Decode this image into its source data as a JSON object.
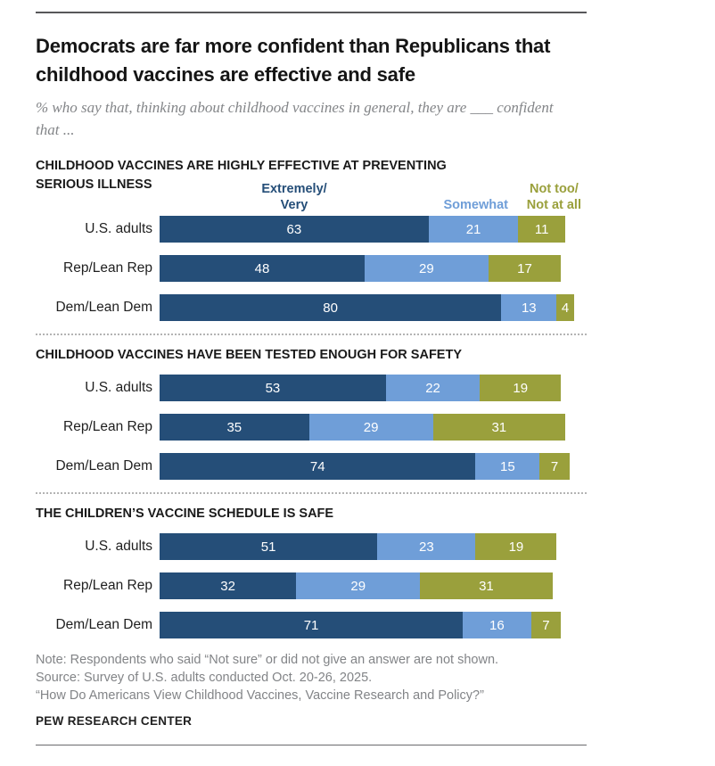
{
  "header": {
    "title": "Democrats are far more confident than Republicans that childhood vaccines are effective and safe",
    "subtitle": "% who say that, thinking about childhood vaccines in general, they are ___ confident that ..."
  },
  "legend": {
    "extremely_very": "Extremely/\nVery",
    "somewhat": "Somewhat",
    "not_too": "Not too/\nNot at all"
  },
  "chart_data": {
    "type": "bar",
    "orientation": "horizontal",
    "stacked": true,
    "unit": "%",
    "value_range": [
      0,
      100
    ],
    "series": [
      "Extremely/Very",
      "Somewhat",
      "Not too/Not at all"
    ],
    "colors": [
      "#254E78",
      "#6F9ED8",
      "#9AA03C"
    ],
    "panels": [
      {
        "title": "CHILDHOOD VACCINES ARE HIGHLY EFFECTIVE AT PREVENTING SERIOUS ILLNESS",
        "rows": [
          {
            "label": "U.S. adults",
            "values": [
              63,
              21,
              11
            ]
          },
          {
            "label": "Rep/Lean Rep",
            "values": [
              48,
              29,
              17
            ]
          },
          {
            "label": "Dem/Lean Dem",
            "values": [
              80,
              13,
              4
            ]
          }
        ]
      },
      {
        "title": "CHILDHOOD VACCINES HAVE BEEN TESTED ENOUGH FOR SAFETY",
        "rows": [
          {
            "label": "U.S. adults",
            "values": [
              53,
              22,
              19
            ]
          },
          {
            "label": "Rep/Lean Rep",
            "values": [
              35,
              29,
              31
            ]
          },
          {
            "label": "Dem/Lean Dem",
            "values": [
              74,
              15,
              7
            ]
          }
        ]
      },
      {
        "title": "THE CHILDREN’S VACCINE SCHEDULE IS SAFE",
        "rows": [
          {
            "label": "U.S. adults",
            "values": [
              51,
              23,
              19
            ]
          },
          {
            "label": "Rep/Lean Rep",
            "values": [
              32,
              29,
              31
            ]
          },
          {
            "label": "Dem/Lean Dem",
            "values": [
              71,
              16,
              7
            ]
          }
        ]
      }
    ]
  },
  "footer": {
    "note": "Note: Respondents who said “Not sure” or did not give an answer are not shown.",
    "source": "Source: Survey of U.S. adults conducted Oct. 20-26, 2025.",
    "report": "“How Do Americans View Childhood Vaccines, Vaccine Research and Policy?”",
    "brand": "PEW RESEARCH CENTER"
  }
}
